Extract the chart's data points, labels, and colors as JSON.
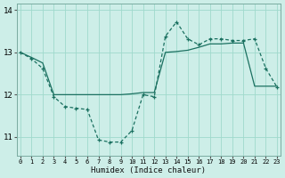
{
  "background_color": "#cdeee8",
  "grid_color": "#9fd9cc",
  "line_color": "#1a7060",
  "x_label": "Humidex (Indice chaleur)",
  "xlim": [
    -0.3,
    23.3
  ],
  "ylim": [
    10.55,
    14.15
  ],
  "yticks": [
    11,
    12,
    13,
    14
  ],
  "xticks": [
    0,
    1,
    2,
    3,
    4,
    5,
    6,
    7,
    8,
    9,
    10,
    11,
    12,
    13,
    14,
    15,
    16,
    17,
    18,
    19,
    20,
    21,
    22,
    23
  ],
  "line1_x": [
    0,
    1,
    2,
    3,
    4,
    5,
    6,
    7,
    8,
    9,
    10,
    11,
    12,
    13,
    14,
    15,
    16,
    17,
    18,
    19,
    20,
    21,
    22,
    23
  ],
  "line1_y": [
    13.0,
    12.85,
    12.62,
    11.95,
    11.72,
    11.68,
    11.65,
    10.93,
    10.88,
    10.88,
    11.15,
    12.0,
    11.95,
    13.38,
    13.72,
    13.32,
    13.18,
    13.32,
    13.32,
    13.28,
    13.28,
    13.32,
    12.62,
    12.18
  ],
  "line2_x": [
    0,
    1,
    2,
    3,
    4,
    5,
    6,
    7,
    8,
    9,
    10,
    11,
    12,
    13,
    14,
    15,
    16,
    17,
    18,
    19,
    20,
    21,
    22,
    23
  ],
  "line2_y": [
    13.0,
    12.88,
    12.75,
    12.0,
    12.0,
    12.0,
    12.0,
    12.0,
    12.0,
    12.0,
    12.02,
    12.05,
    12.05,
    13.0,
    13.02,
    13.05,
    13.12,
    13.2,
    13.2,
    13.22,
    13.22,
    12.2,
    12.2,
    12.2
  ]
}
